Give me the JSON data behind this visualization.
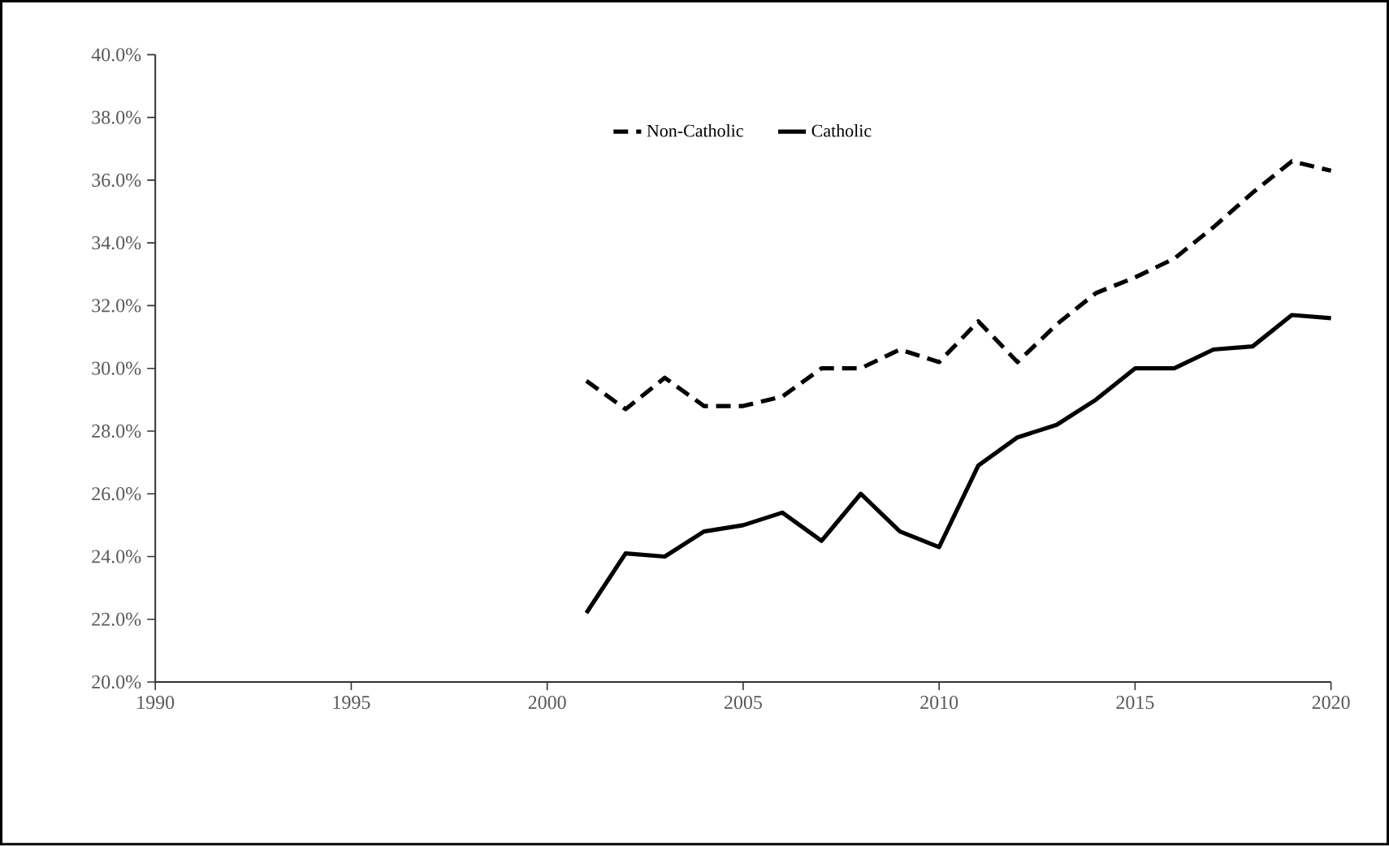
{
  "chart_data": {
    "type": "line",
    "x": [
      2001,
      2002,
      2003,
      2004,
      2005,
      2006,
      2007,
      2008,
      2009,
      2010,
      2011,
      2012,
      2013,
      2014,
      2015,
      2016,
      2017,
      2018,
      2019,
      2020
    ],
    "series": [
      {
        "name": "Non-Catholic",
        "color": "#000000",
        "line_style": "dashed",
        "values": [
          29.6,
          28.7,
          29.7,
          28.8,
          28.8,
          29.1,
          30.0,
          30.0,
          30.6,
          30.2,
          31.5,
          30.2,
          31.4,
          32.4,
          32.9,
          33.5,
          34.5,
          35.6,
          36.6,
          36.3
        ]
      },
      {
        "name": "Catholic",
        "color": "#000000",
        "line_style": "solid",
        "values": [
          22.2,
          24.1,
          24.0,
          24.8,
          25.0,
          25.4,
          24.5,
          26.0,
          24.8,
          24.3,
          26.9,
          27.8,
          28.2,
          29.0,
          30.0,
          30.0,
          30.6,
          30.7,
          31.7,
          31.6
        ]
      }
    ],
    "xlim": [
      1990,
      2020
    ],
    "xticks": [
      1990,
      1995,
      2000,
      2005,
      2010,
      2015,
      2020
    ],
    "ylim": [
      20,
      40
    ],
    "yticks": [
      {
        "value": 20,
        "label": "20.0%"
      },
      {
        "value": 22,
        "label": "22.0%"
      },
      {
        "value": 24,
        "label": "24.0%"
      },
      {
        "value": 26,
        "label": "26.0%"
      },
      {
        "value": 28,
        "label": "28.0%"
      },
      {
        "value": 30,
        "label": "30.0%"
      },
      {
        "value": 32,
        "label": "32.0%"
      },
      {
        "value": 34,
        "label": "34.0%"
      },
      {
        "value": 36,
        "label": "36.0%"
      },
      {
        "value": 38,
        "label": "38.0%"
      },
      {
        "value": 40,
        "label": "40.0%"
      }
    ],
    "grid": false,
    "legend": "top",
    "marker": "none"
  }
}
